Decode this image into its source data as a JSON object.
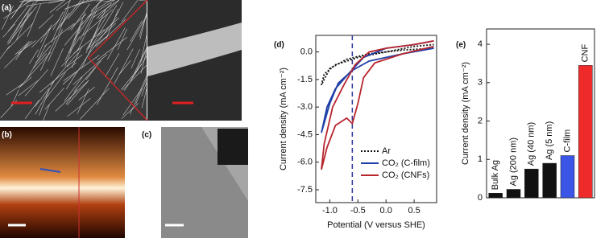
{
  "panel_labels": [
    "(a)",
    "(b)",
    "(c)"
  ],
  "chart_data": [
    {
      "type": "line",
      "panel_label": "(d)",
      "xlabel": "Potential (V versus SHE)",
      "ylabel": "Current density (mA cm⁻²)",
      "xlim": [
        -1.25,
        0.9
      ],
      "ylim": [
        -8.2,
        0.9
      ],
      "xticks": [
        {
          "value": -1,
          "label": "-1.0"
        },
        -0.5,
        {
          "value": 0,
          "label": "0.0"
        },
        0.5
      ],
      "yticks": [
        {
          "value": 0,
          "label": "0.0"
        },
        -1.5,
        {
          "value": -3,
          "label": "-3.0"
        },
        -4.5,
        {
          "value": -6,
          "label": "-6.0"
        },
        -7.5
      ],
      "vline": -0.6,
      "series": [
        {
          "name": "Ar",
          "color": "#111111",
          "style": "dotted",
          "x": [
            0.85,
            0.3,
            -0.3,
            -0.7,
            -1.0,
            -1.15,
            -1.1,
            -0.9,
            -0.5,
            0,
            0.5,
            0.85
          ],
          "values": [
            0.2,
            0.1,
            -0.1,
            -0.4,
            -0.9,
            -1.8,
            -1.2,
            -0.7,
            -0.3,
            0,
            0.3,
            0.4
          ]
        },
        {
          "name": "CO₂ (C-film)",
          "color": "#1f3fa8",
          "style": "solid",
          "x": [
            0.85,
            0.3,
            -0.3,
            -0.6,
            -0.85,
            -1.0,
            -1.15,
            -1.05,
            -0.9,
            -0.7,
            -0.4,
            0,
            0.5,
            0.85
          ],
          "values": [
            0.2,
            -0.1,
            -0.5,
            -1.0,
            -1.7,
            -2.8,
            -4.4,
            -3.0,
            -2.0,
            -1.3,
            -0.3,
            0.2,
            0.4,
            0.6
          ]
        },
        {
          "name": "CO₂ (CNFs)",
          "color": "#b8262e",
          "style": "solid",
          "x": [
            0.85,
            0.3,
            -0.2,
            -0.4,
            -0.5,
            -0.6,
            -0.7,
            -0.9,
            -1.05,
            -1.15,
            -1.1,
            -0.95,
            -0.75,
            -0.55,
            -0.3,
            0,
            0.5,
            0.85
          ],
          "values": [
            0.3,
            -0.1,
            -0.6,
            -1.4,
            -2.8,
            -3.9,
            -3.6,
            -4.0,
            -5.2,
            -6.4,
            -5.0,
            -3.0,
            -1.8,
            -0.7,
            0,
            0.2,
            0.4,
            0.6
          ]
        }
      ]
    },
    {
      "type": "bar",
      "panel_label": "(e)",
      "ylabel": "Current density (mA cm⁻²)",
      "categories": [
        "Bulk Ag",
        "Ag (200 nm)",
        "Ag (40 nm)",
        "Ag (5 nm)",
        "C-film",
        "CNF"
      ],
      "values": [
        0.12,
        0.22,
        0.75,
        0.9,
        1.1,
        3.45
      ],
      "colors": [
        "#111111",
        "#111111",
        "#111111",
        "#111111",
        "#3b55e6",
        "#ee2a2a"
      ],
      "ylim": [
        0,
        4.4
      ],
      "yticks": [
        0,
        1,
        2,
        3,
        4
      ]
    }
  ]
}
